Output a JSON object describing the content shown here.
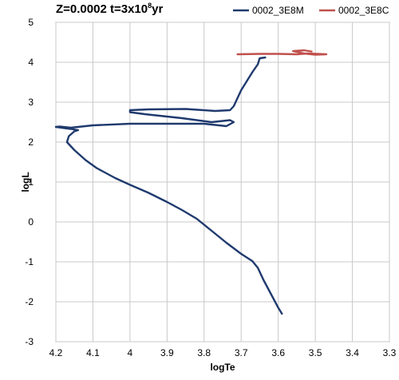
{
  "title": {
    "prefix": "Z=0.0002 t=3x10",
    "exponent": "8",
    "suffix": "yr"
  },
  "chart_data": {
    "type": "line",
    "title": "Z=0.0002 t=3x10^8yr",
    "xlabel": "logTe",
    "ylabel": "logL",
    "xlim": [
      4.2,
      3.3
    ],
    "ylim": [
      -3,
      5
    ],
    "x_reversed": true,
    "x_ticks": [
      "4.2",
      "4.1",
      "4",
      "3.9",
      "3.8",
      "3.7",
      "3.6",
      "3.5",
      "3.4",
      "3.3"
    ],
    "y_ticks": [
      "-3",
      "-2",
      "-1",
      "0",
      "1",
      "2",
      "3",
      "4",
      "5"
    ],
    "grid": true,
    "legend_position": "top-right",
    "colors": {
      "0002_3E8M": "#1f3a6e",
      "0002_3E8C": "#c0504d"
    },
    "series": [
      {
        "name": "0002_3E8M",
        "color": "#1f3a6e",
        "points": [
          [
            3.59,
            -2.3
          ],
          [
            3.6,
            -2.15
          ],
          [
            3.62,
            -1.8
          ],
          [
            3.64,
            -1.45
          ],
          [
            3.655,
            -1.15
          ],
          [
            3.67,
            -0.98
          ],
          [
            3.7,
            -0.8
          ],
          [
            3.74,
            -0.52
          ],
          [
            3.78,
            -0.22
          ],
          [
            3.82,
            0.08
          ],
          [
            3.86,
            0.3
          ],
          [
            3.9,
            0.5
          ],
          [
            3.95,
            0.73
          ],
          [
            4.0,
            0.93
          ],
          [
            4.04,
            1.1
          ],
          [
            4.09,
            1.35
          ],
          [
            4.12,
            1.55
          ],
          [
            4.15,
            1.8
          ],
          [
            4.17,
            2.0
          ],
          [
            4.165,
            2.15
          ],
          [
            4.15,
            2.27
          ],
          [
            4.14,
            2.3
          ],
          [
            4.16,
            2.33
          ],
          [
            4.2,
            2.38
          ],
          [
            4.19,
            2.39
          ],
          [
            4.16,
            2.36
          ],
          [
            4.1,
            2.42
          ],
          [
            4.0,
            2.46
          ],
          [
            3.9,
            2.46
          ],
          [
            3.8,
            2.46
          ],
          [
            3.74,
            2.4
          ],
          [
            3.72,
            2.5
          ],
          [
            3.73,
            2.55
          ],
          [
            3.78,
            2.5
          ],
          [
            3.86,
            2.6
          ],
          [
            3.96,
            2.7
          ],
          [
            4.0,
            2.75
          ],
          [
            4.0,
            2.8
          ],
          [
            3.95,
            2.82
          ],
          [
            3.85,
            2.83
          ],
          [
            3.77,
            2.78
          ],
          [
            3.73,
            2.8
          ],
          [
            3.72,
            2.9
          ],
          [
            3.7,
            3.3
          ],
          [
            3.67,
            3.75
          ],
          [
            3.655,
            3.95
          ],
          [
            3.65,
            4.1
          ],
          [
            3.635,
            4.12
          ]
        ]
      },
      {
        "name": "0002_3E8C",
        "color": "#c0504d",
        "points": [
          [
            3.71,
            4.2
          ],
          [
            3.65,
            4.21
          ],
          [
            3.6,
            4.21
          ],
          [
            3.55,
            4.2
          ],
          [
            3.52,
            4.22
          ],
          [
            3.47,
            4.2
          ],
          [
            3.5,
            4.19
          ],
          [
            3.53,
            4.22
          ],
          [
            3.56,
            4.28
          ],
          [
            3.53,
            4.3
          ],
          [
            3.51,
            4.27
          ]
        ]
      }
    ]
  }
}
